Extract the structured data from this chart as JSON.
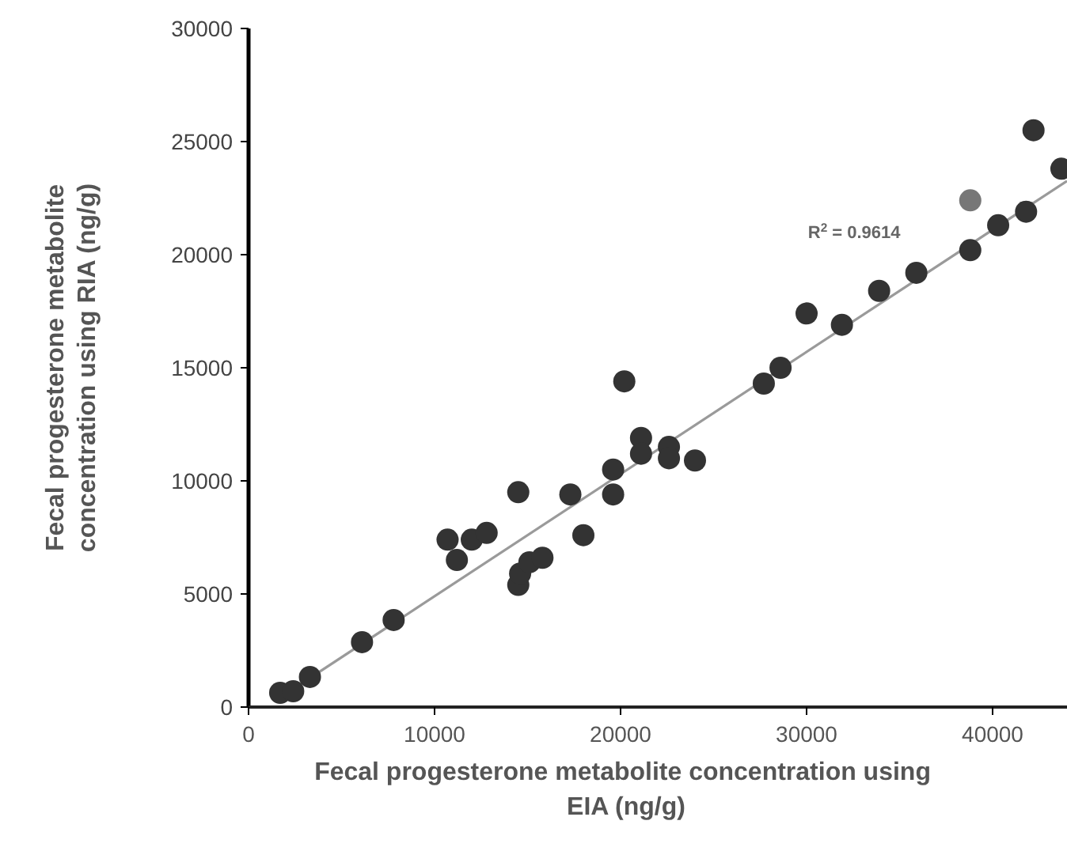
{
  "chart_data": {
    "type": "scatter",
    "xlabel": "Fecal progesterone metabolite concentration using  EIA (ng/g)",
    "ylabel": "Fecal progesterone metabolite concentration using RIA (ng/g)",
    "xlim": [
      0,
      44000
    ],
    "ylim": [
      0,
      30000
    ],
    "xticks": [
      0,
      10000,
      20000,
      30000,
      40000
    ],
    "yticks": [
      0,
      5000,
      10000,
      15000,
      20000,
      25000,
      30000
    ],
    "annotations": [
      "R$^{2}$ = 0.9614"
    ],
    "series": [
      {
        "color": "#333333",
        "marker": "circle",
        "x": [
          1700,
          2400,
          3300,
          6100,
          7800,
          10700,
          11200,
          12000,
          12800,
          14500,
          14500,
          14600,
          15100,
          15800,
          17300,
          18000,
          19600,
          19600,
          20200,
          21100,
          21100,
          22600,
          22600,
          24000,
          27700,
          28600,
          30000,
          31900,
          33900,
          35900,
          38800,
          40300,
          41800,
          42200,
          43700
        ],
        "values": [
          630,
          700,
          1330,
          2870,
          3850,
          7400,
          6500,
          7400,
          7700,
          9500,
          5400,
          5900,
          6400,
          6600,
          9400,
          7600,
          9400,
          10500,
          14400,
          11900,
          11200,
          11500,
          11000,
          10900,
          14300,
          15000,
          17400,
          16900,
          18400,
          19200,
          20200,
          21300,
          21900,
          25500,
          23800
        ]
      },
      {
        "color": "#777777",
        "marker": "circle",
        "x": [
          38800
        ],
        "values": [
          22400
        ]
      },
      {
        "type": "line",
        "color": "#9a9a9a",
        "marker": "none",
        "x": [
          1500,
          44000
        ],
        "values": [
          310,
          23260
        ]
      }
    ]
  }
}
